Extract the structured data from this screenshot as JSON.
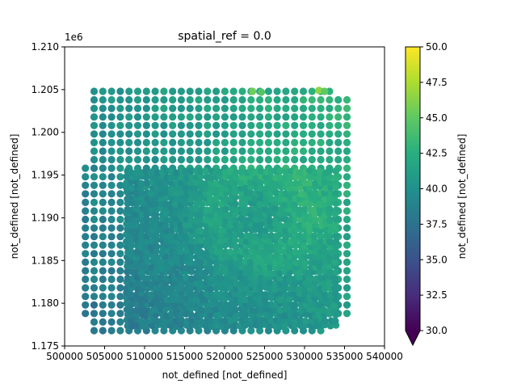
{
  "chart_data": {
    "type": "scatter",
    "title": "spatial_ref = 0.0",
    "xlabel": "not_defined [not_defined]",
    "ylabel": "not_defined [not_defined]",
    "offset_text": "1e6",
    "xlim": [
      500000,
      540000
    ],
    "ylim": [
      1175000,
      1210000
    ],
    "x_tick_labels": [
      "500000",
      "505000",
      "510000",
      "515000",
      "520000",
      "525000",
      "530000",
      "535000",
      "540000"
    ],
    "y_tick_labels": [
      "1.175",
      "1.180",
      "1.185",
      "1.190",
      "1.195",
      "1.200",
      "1.205",
      "1.210"
    ],
    "grid": false,
    "colorbar": {
      "label": "not_defined [not_defined]",
      "colormap": "viridis",
      "range": [
        30.0,
        50.0
      ],
      "extend": "min",
      "tick_labels": [
        "30.0",
        "32.5",
        "35.0",
        "37.5",
        "40.0",
        "42.5",
        "45.0",
        "47.5",
        "50.0"
      ]
    },
    "points_description": "dense grid of circular markers covering x 502500-535500, y 1176800-1204800; values mostly 35-42, higher (43-47) near top right",
    "outer_grid": {
      "x_start": 502600,
      "x_step": 1090,
      "x_count": 31,
      "y_start": 1176800,
      "y_step": 1000,
      "y_count": 29
    },
    "dense_region": {
      "x_range": [
        507800,
        534400
      ],
      "y_range": [
        1177400,
        1195600
      ],
      "spacing": 620
    },
    "value_model": {
      "base": 37.6,
      "east_gradient": 3.2,
      "north_gradient": 2.4,
      "noise": 1.6
    },
    "highlight_points": [
      {
        "x": 523500,
        "y": 1204800,
        "value": 45.5
      },
      {
        "x": 531800,
        "y": 1204900,
        "value": 46.5
      },
      {
        "x": 532500,
        "y": 1204800,
        "value": 45.0
      },
      {
        "x": 524600,
        "y": 1204700,
        "value": 44.5
      }
    ]
  }
}
